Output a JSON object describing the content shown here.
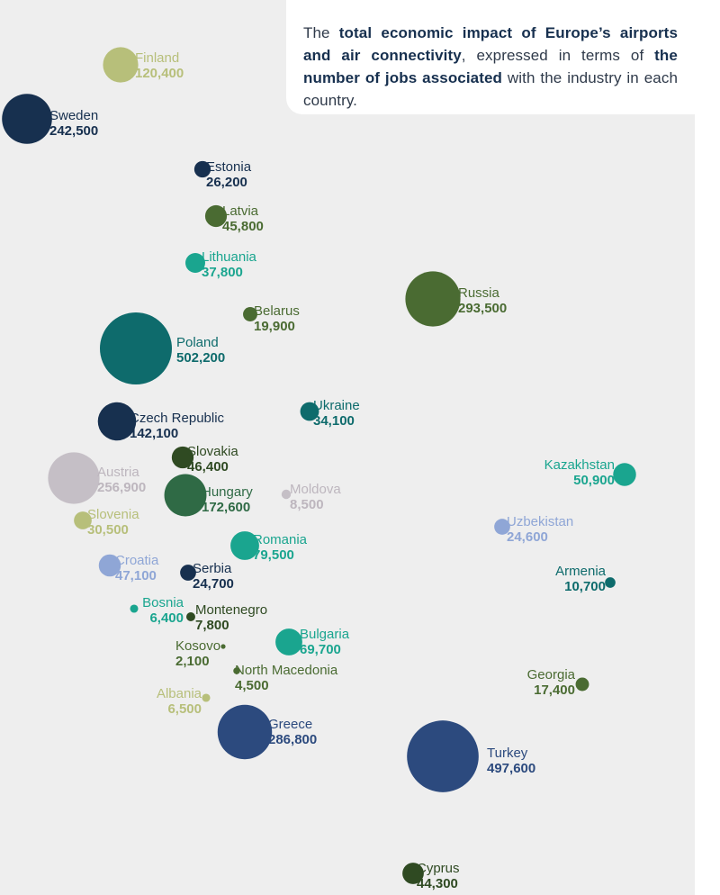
{
  "intro": {
    "p1": "The ",
    "b1": "total economic impact of Europe’s airports and air connectivity",
    "p2": ", expressed in terms of ",
    "b2": "the number of jobs associated",
    "p3": " with the industry in each country."
  },
  "colors": {
    "navy": "#17304f",
    "blue": "#2c4a7e",
    "teal": "#0e6b6c",
    "darkgreen": "#2f6a45",
    "olive": "#4a6b32",
    "turquoise": "#1aa58f",
    "lightblue": "#8fa6d6",
    "khaki": "#b7bf7a",
    "grey": "#c5bfc6",
    "forest": "#2f4a22"
  },
  "chart_data": {
    "type": "bubble-map",
    "unit": "jobs",
    "points": [
      {
        "country": "Finland",
        "label": "120,400",
        "value": 120400,
        "color": "khaki"
      },
      {
        "country": "Sweden",
        "label": "242,500",
        "value": 242500,
        "color": "navy"
      },
      {
        "country": "Estonia",
        "label": "26,200",
        "value": 26200,
        "color": "navy"
      },
      {
        "country": "Latvia",
        "label": "45,800",
        "value": 45800,
        "color": "olive"
      },
      {
        "country": "Lithuania",
        "label": "37,800",
        "value": 37800,
        "color": "turquoise"
      },
      {
        "country": "Belarus",
        "label": "19,900",
        "value": 19900,
        "color": "olive"
      },
      {
        "country": "Russia",
        "label": "293,500",
        "value": 293500,
        "color": "olive"
      },
      {
        "country": "Poland",
        "label": "502,200",
        "value": 502200,
        "color": "teal"
      },
      {
        "country": "Ukraine",
        "label": "34,100",
        "value": 34100,
        "color": "teal"
      },
      {
        "country": "Czech Republic",
        "label": "142,100",
        "value": 142100,
        "color": "navy"
      },
      {
        "country": "Slovakia",
        "label": "46,400",
        "value": 46400,
        "color": "forest"
      },
      {
        "country": "Austria",
        "label": "256,900",
        "value": 256900,
        "color": "grey"
      },
      {
        "country": "Hungary",
        "label": "172,600",
        "value": 172600,
        "color": "darkgreen"
      },
      {
        "country": "Moldova",
        "label": "8,500",
        "value": 8500,
        "color": "grey"
      },
      {
        "country": "Kazakhstan",
        "label": "50,900",
        "value": 50900,
        "color": "turquoise"
      },
      {
        "country": "Slovenia",
        "label": "30,500",
        "value": 30500,
        "color": "khaki"
      },
      {
        "country": "Uzbekistan",
        "label": "24,600",
        "value": 24600,
        "color": "lightblue"
      },
      {
        "country": "Romania",
        "label": "79,500",
        "value": 79500,
        "color": "turquoise"
      },
      {
        "country": "Croatia",
        "label": "47,100",
        "value": 47100,
        "color": "lightblue"
      },
      {
        "country": "Serbia",
        "label": "24,700",
        "value": 24700,
        "color": "navy"
      },
      {
        "country": "Armenia",
        "label": "10,700",
        "value": 10700,
        "color": "teal"
      },
      {
        "country": "Bosnia",
        "label": "6,400",
        "value": 6400,
        "color": "turquoise"
      },
      {
        "country": "Montenegro",
        "label": "7,800",
        "value": 7800,
        "color": "forest"
      },
      {
        "country": "Kosovo",
        "label": "2,100",
        "value": 2100,
        "color": "olive"
      },
      {
        "country": "Bulgaria",
        "label": "69,700",
        "value": 69700,
        "color": "turquoise"
      },
      {
        "country": "North Macedonia",
        "label": "4,500",
        "value": 4500,
        "color": "olive"
      },
      {
        "country": "Georgia",
        "label": "17,400",
        "value": 17400,
        "color": "olive"
      },
      {
        "country": "Albania",
        "label": "6,500",
        "value": 6500,
        "color": "khaki"
      },
      {
        "country": "Greece",
        "label": "286,800",
        "value": 286800,
        "color": "blue"
      },
      {
        "country": "Turkey",
        "label": "497,600",
        "value": 497600,
        "color": "blue"
      },
      {
        "country": "Cyprus",
        "label": "44,300",
        "value": 44300,
        "color": "forest"
      }
    ]
  }
}
